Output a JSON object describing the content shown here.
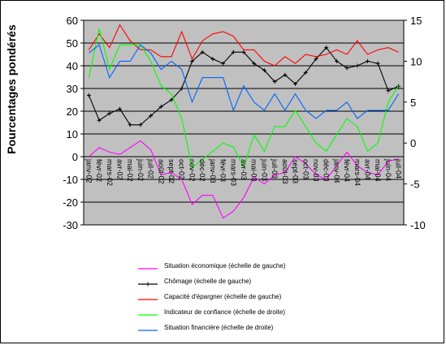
{
  "chart_data": {
    "type": "line",
    "ylabel": "Pourcentages pondérés",
    "categories": [
      "janv-02",
      "févr-02",
      "mars-02",
      "avr-02",
      "mai-02",
      "juin-02",
      "juil-02",
      "août-02",
      "sept-02",
      "oct-02",
      "nov-02",
      "déc-02",
      "janv-03",
      "févr-03",
      "mars-03",
      "avr-03",
      "mai-03",
      "juin-03",
      "juil-03",
      "août-03",
      "sept-03",
      "oct-03",
      "nov-03",
      "déc-03",
      "janv-04",
      "févr-04",
      "mars-04",
      "avr-04",
      "mai-04",
      "juin-04",
      "juil-04"
    ],
    "left_axis": {
      "ylim": [
        -30,
        60
      ],
      "ticks": [
        -30,
        -20,
        -10,
        0,
        10,
        20,
        30,
        40,
        50,
        60
      ]
    },
    "right_axis": {
      "ylim": [
        -10,
        15
      ],
      "ticks": [
        -10,
        -5,
        0,
        5,
        10,
        15
      ]
    },
    "grid": "horizontal",
    "plot_background": "#c0c0c0",
    "series": [
      {
        "name": "Situation économique (échelle de gauche)",
        "axis": "left",
        "color": "#ff00ff",
        "marker": "none",
        "values": [
          0,
          4,
          2,
          1,
          4,
          7,
          3,
          -8,
          -7,
          -10,
          -21,
          -17,
          -17,
          -27,
          -24,
          -18,
          -9,
          -12,
          -8,
          -7,
          0,
          -3,
          -8,
          -10,
          -4,
          2,
          -4,
          -7,
          -8,
          -2,
          -1
        ]
      },
      {
        "name": "Chômage (échelle de gauche)",
        "axis": "left",
        "color": "#000000",
        "marker": "plus",
        "values": [
          27,
          16,
          19,
          21,
          14,
          14,
          18,
          22,
          25,
          30,
          42,
          46,
          43,
          41,
          46,
          46,
          41,
          38,
          33,
          36,
          32,
          37,
          43,
          48,
          42,
          39,
          40,
          42,
          41,
          29,
          31
        ]
      },
      {
        "name": "Capacité d'épargner (échelle de gauche)",
        "axis": "left",
        "color": "#ff0000",
        "marker": "none",
        "values": [
          47,
          54,
          48,
          58,
          51,
          47,
          47,
          44,
          44,
          55,
          43,
          51,
          54,
          55,
          53,
          47,
          47,
          42,
          40,
          44,
          41,
          45,
          44,
          45,
          47,
          45,
          51,
          45,
          47,
          48,
          46
        ]
      },
      {
        "name": "Indicateur de confiance (échelle de droite)",
        "axis": "right",
        "color": "#00ff00",
        "marker": "none",
        "values": [
          8,
          14,
          9,
          12,
          12,
          12,
          10,
          7,
          6,
          3,
          -3,
          -2,
          -1,
          0,
          -0.5,
          -3,
          1,
          -1,
          2,
          2,
          4,
          2,
          0,
          -1,
          1,
          3,
          2,
          -1,
          0,
          5,
          7
        ]
      },
      {
        "name": "Situation financière (échelle de droite)",
        "axis": "right",
        "color": "#0066ff",
        "marker": "none",
        "values": [
          11,
          12,
          8,
          10,
          10,
          12,
          11,
          9,
          10,
          9,
          5,
          8,
          8,
          8,
          4,
          7,
          5,
          4,
          6,
          4,
          6,
          4,
          3,
          4,
          4,
          5,
          3,
          4,
          4,
          4,
          6
        ]
      }
    ]
  }
}
